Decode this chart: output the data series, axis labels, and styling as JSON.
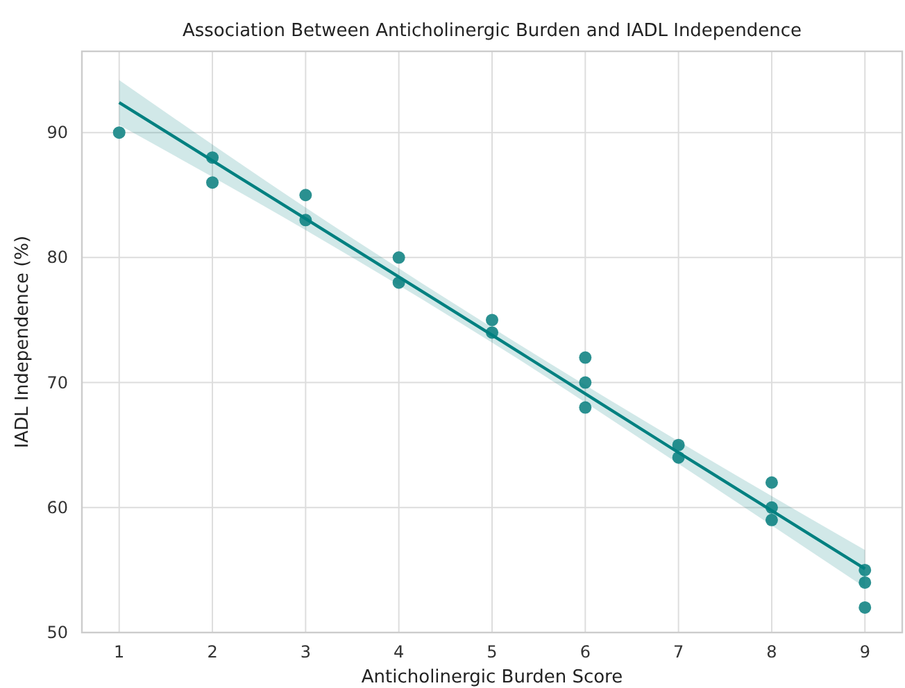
{
  "chart_data": {
    "type": "scatter",
    "title": "Association Between Anticholinergic Burden and IADL Independence",
    "xlabel": "Anticholinergic Burden Score",
    "ylabel": "IADL Independence (%)",
    "xlim": [
      0.6,
      9.4
    ],
    "ylim": [
      50,
      96.5
    ],
    "xticks": [
      1,
      2,
      3,
      4,
      5,
      6,
      7,
      8,
      9
    ],
    "yticks": [
      50,
      60,
      70,
      80,
      90
    ],
    "grid": true,
    "marker": "circle",
    "series": [
      {
        "color": "#2a9090",
        "x": [
          1,
          2,
          2,
          3,
          3,
          4,
          4,
          5,
          5,
          6,
          6,
          6,
          7,
          7,
          8,
          8,
          8,
          9,
          9,
          9
        ],
        "values": [
          90,
          88,
          86,
          85,
          83,
          80,
          78,
          75,
          74,
          72,
          70,
          68,
          65,
          64,
          62,
          60,
          59,
          55,
          54,
          52
        ]
      },
      {
        "type": "line",
        "color": "#008080",
        "marker": "none",
        "x": [
          1,
          3,
          5,
          7,
          9
        ],
        "values": [
          92.4,
          83.1,
          73.8,
          64.4,
          55.1
        ],
        "lower": [
          90.6,
          82.2,
          73.2,
          63.5,
          53.6
        ],
        "upper": [
          94.2,
          84.0,
          74.4,
          65.3,
          56.6
        ]
      }
    ]
  }
}
